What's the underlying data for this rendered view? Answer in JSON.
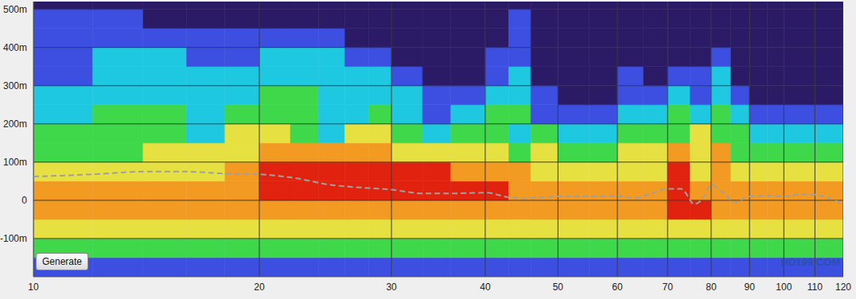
{
  "chart_data": {
    "type": "heatmap",
    "xlim": [
      10,
      120
    ],
    "xticks": [
      10,
      20,
      30,
      40,
      50,
      60,
      70,
      80,
      90,
      100,
      110,
      120
    ],
    "ylim": [
      -200,
      520
    ],
    "yticks": [
      {
        "value": -100,
        "label": "-100m"
      },
      0,
      {
        "value": 100,
        "label": "100m"
      },
      {
        "value": 200,
        "label": "200m"
      },
      {
        "value": 300,
        "label": "300m"
      },
      {
        "value": 400,
        "label": "400m"
      },
      {
        "value": 500,
        "label": "500m"
      }
    ],
    "log": "x",
    "grid": true,
    "x_edges": [
      10,
      12,
      14,
      16,
      18,
      20,
      22,
      24,
      26,
      28,
      30,
      33,
      36,
      40,
      43,
      46,
      50,
      55,
      60,
      65,
      70,
      75,
      80,
      85,
      90,
      95,
      100,
      110,
      120
    ],
    "y_edges": [
      -200,
      -150,
      -100,
      -50,
      0,
      50,
      100,
      150,
      200,
      250,
      300,
      350,
      400,
      450,
      500,
      520
    ],
    "colors": [
      "#2b1a66",
      "#3d4fe0",
      "#1ec8e0",
      "#3fd84a",
      "#e6e040",
      "#f29a22",
      "#e0220e"
    ],
    "cells": [
      [
        1,
        1,
        1,
        1,
        1,
        1,
        1,
        1,
        1,
        1,
        1,
        1,
        1,
        1,
        1,
        1,
        1,
        1,
        1,
        1,
        1,
        1,
        1,
        1,
        1,
        1,
        1,
        1
      ],
      [
        3,
        3,
        3,
        3,
        3,
        3,
        3,
        3,
        3,
        3,
        3,
        3,
        3,
        3,
        3,
        3,
        3,
        3,
        3,
        3,
        3,
        3,
        3,
        3,
        3,
        3,
        3,
        3
      ],
      [
        4,
        4,
        4,
        4,
        4,
        4,
        4,
        4,
        4,
        4,
        4,
        4,
        4,
        4,
        4,
        4,
        4,
        4,
        4,
        4,
        4,
        4,
        4,
        4,
        4,
        4,
        4,
        4
      ],
      [
        5,
        5,
        5,
        5,
        5,
        5,
        5,
        5,
        5,
        5,
        5,
        5,
        5,
        5,
        5,
        5,
        5,
        5,
        5,
        5,
        6,
        6,
        5,
        5,
        5,
        5,
        5,
        5
      ],
      [
        5,
        5,
        5,
        5,
        5,
        6,
        6,
        6,
        6,
        6,
        6,
        6,
        6,
        6,
        5,
        5,
        5,
        5,
        5,
        5,
        6,
        5,
        5,
        5,
        5,
        5,
        5,
        5
      ],
      [
        4,
        4,
        4,
        4,
        5,
        6,
        6,
        6,
        6,
        6,
        6,
        6,
        5,
        5,
        5,
        4,
        4,
        4,
        4,
        4,
        6,
        4,
        5,
        4,
        4,
        4,
        4,
        4
      ],
      [
        3,
        3,
        4,
        4,
        4,
        5,
        5,
        5,
        5,
        5,
        4,
        4,
        4,
        4,
        3,
        4,
        3,
        3,
        4,
        4,
        5,
        4,
        5,
        3,
        3,
        3,
        3,
        3
      ],
      [
        3,
        3,
        3,
        2,
        4,
        4,
        3,
        2,
        4,
        4,
        3,
        2,
        3,
        3,
        2,
        3,
        2,
        2,
        3,
        3,
        3,
        4,
        3,
        3,
        2,
        2,
        2,
        2
      ],
      [
        2,
        3,
        3,
        2,
        3,
        3,
        3,
        2,
        2,
        3,
        2,
        1,
        2,
        3,
        3,
        1,
        1,
        1,
        2,
        2,
        3,
        2,
        3,
        2,
        1,
        1,
        1,
        1
      ],
      [
        2,
        2,
        2,
        2,
        2,
        3,
        3,
        2,
        2,
        2,
        2,
        1,
        1,
        2,
        2,
        1,
        0,
        0,
        1,
        1,
        2,
        1,
        2,
        1,
        0,
        0,
        0,
        0
      ],
      [
        1,
        2,
        2,
        2,
        2,
        2,
        2,
        2,
        2,
        2,
        1,
        0,
        0,
        1,
        2,
        0,
        0,
        0,
        1,
        0,
        1,
        1,
        2,
        0,
        0,
        0,
        0,
        0
      ],
      [
        1,
        2,
        2,
        1,
        1,
        2,
        2,
        2,
        1,
        1,
        0,
        0,
        0,
        1,
        1,
        0,
        0,
        0,
        0,
        0,
        0,
        0,
        1,
        0,
        0,
        0,
        0,
        0
      ],
      [
        1,
        1,
        1,
        1,
        1,
        1,
        1,
        1,
        0,
        0,
        0,
        0,
        0,
        0,
        1,
        0,
        0,
        0,
        0,
        0,
        0,
        0,
        0,
        0,
        0,
        0,
        0,
        0
      ],
      [
        1,
        1,
        0,
        0,
        0,
        0,
        0,
        0,
        0,
        0,
        0,
        0,
        0,
        0,
        1,
        0,
        0,
        0,
        0,
        0,
        0,
        0,
        0,
        0,
        0,
        0,
        0,
        0
      ],
      [
        0,
        0,
        0,
        0,
        0,
        0,
        0,
        0,
        0,
        0,
        0,
        0,
        0,
        0,
        0,
        0,
        0,
        0,
        0,
        0,
        0,
        0,
        0,
        0,
        0,
        0,
        0,
        0
      ]
    ],
    "series": [
      {
        "type": "line",
        "color": "#a0a0a0",
        "line_style": "dashed",
        "x": [
          10,
          12,
          14,
          16,
          18,
          20,
          22,
          25,
          28,
          30,
          33,
          36,
          40,
          43,
          45,
          50,
          55,
          60,
          63,
          67,
          70,
          73,
          76,
          78,
          80,
          83,
          86,
          90,
          95,
          100,
          105,
          110,
          115,
          120
        ],
        "values": [
          62,
          68,
          75,
          75,
          70,
          68,
          60,
          40,
          32,
          28,
          18,
          18,
          20,
          8,
          5,
          10,
          10,
          12,
          5,
          20,
          30,
          30,
          -10,
          5,
          40,
          20,
          -5,
          10,
          12,
          10,
          15,
          15,
          5,
          -10
        ]
      }
    ],
    "annotations": [
      "Generate",
      "HD199.COM"
    ]
  }
}
